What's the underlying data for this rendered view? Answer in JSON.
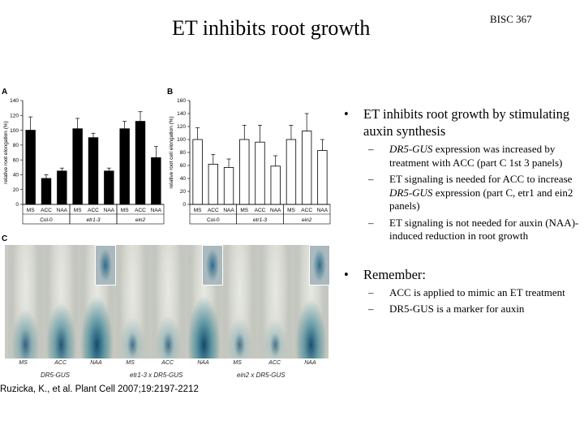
{
  "slide": {
    "title": "ET inhibits root growth",
    "course": "BISC 367",
    "citation": "Ruzicka, K., et al. Plant Cell 2007;19:2197-2212"
  },
  "panels": {
    "a": "A",
    "b": "B",
    "c": "C"
  },
  "bullets": {
    "b1": {
      "text": "ET inhibits root growth by stimulating auxin synthesis",
      "subs": [
        {
          "em": "DR5-GUS",
          "pre": "",
          "post": " expression was increased by treatment with ACC (part C 1st 3 panels)"
        },
        {
          "em": "DR5-GUS",
          "pre": "ET signaling is needed for ACC to increase ",
          "post": " expression (part C, etr1 and ein2 panels)"
        },
        {
          "em": "",
          "pre": "ET signaling is not needed for auxin (NAA)-induced reduction in root growth",
          "post": ""
        }
      ]
    },
    "b2": {
      "text": "Remember:",
      "subs": [
        "ACC is applied to mimic an ET treatment",
        "DR5-GUS is a marker for auxin"
      ]
    },
    "bullet_glyph": "•",
    "dash_glyph": "–"
  },
  "chart_data": [
    {
      "type": "bar",
      "panel": "A",
      "ylabel": "relative root elongation (%)",
      "ylim": [
        0,
        140
      ],
      "yticks": [
        0,
        20,
        40,
        60,
        80,
        100,
        120,
        140
      ],
      "categories": [
        "MS",
        "ACC",
        "NAA",
        "MS",
        "ACC",
        "NAA",
        "MS",
        "ACC",
        "NAA"
      ],
      "groups": [
        "Col-0",
        "etr1-3",
        "ein2"
      ],
      "values": [
        100,
        35,
        45,
        102,
        90,
        45,
        102,
        112,
        63
      ],
      "errors": [
        18,
        5,
        4,
        14,
        6,
        4,
        10,
        13,
        15
      ],
      "bar_color": "#000000"
    },
    {
      "type": "bar",
      "panel": "B",
      "ylabel": "relative root cell elongation (%)",
      "ylim": [
        0,
        160
      ],
      "yticks": [
        0,
        20,
        40,
        60,
        80,
        100,
        120,
        140,
        160
      ],
      "categories": [
        "MS",
        "ACC",
        "NAA",
        "MS",
        "ACC",
        "NAA",
        "MS",
        "ACC",
        "NAA"
      ],
      "groups": [
        "Col-0",
        "etr1-3",
        "ein2"
      ],
      "values": [
        100,
        62,
        57,
        100,
        96,
        59,
        100,
        113,
        83
      ],
      "errors": [
        18,
        15,
        13,
        22,
        26,
        16,
        22,
        27,
        17
      ],
      "bar_color": "#ffffff"
    }
  ],
  "figure_c": {
    "labels": [
      "MS",
      "ACC",
      "NAA",
      "MS",
      "ACC",
      "NAA",
      "MS",
      "ACC",
      "NAA"
    ],
    "groups": [
      "DR5-GUS",
      "etr1-3 x DR5-GUS",
      "ein2 x DR5-GUS"
    ],
    "stain": [
      0.6,
      0.8,
      1.0,
      0.35,
      0.4,
      1.0,
      0.35,
      0.3,
      0.9
    ]
  }
}
